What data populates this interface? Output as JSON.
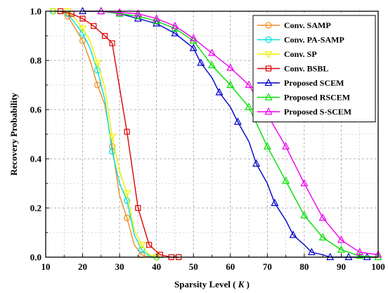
{
  "chart_data": {
    "type": "line",
    "title": "",
    "xlabel": "Sparsity Level",
    "xlabel_symbol": "K",
    "ylabel": "Recovery Probability",
    "xlim": [
      10,
      100
    ],
    "ylim": [
      0,
      1
    ],
    "xticks": [
      10,
      20,
      30,
      40,
      50,
      60,
      70,
      80,
      90,
      100
    ],
    "yticks": [
      0.0,
      0.2,
      0.4,
      0.6,
      0.8,
      1.0
    ],
    "ytick_labels": [
      "0.0",
      "0.2",
      "0.4",
      "0.6",
      "0.8",
      "1.0"
    ],
    "grid": true,
    "legend_position": "top-right",
    "series": [
      {
        "name": "Conv. SAMP",
        "color": "#f08c1e",
        "marker": "circle",
        "x": [
          12,
          14,
          16,
          18,
          20,
          22,
          24,
          26,
          28,
          30,
          32,
          34,
          36,
          38,
          40,
          42
        ],
        "y": [
          1.0,
          1.0,
          0.98,
          0.93,
          0.88,
          0.8,
          0.7,
          0.62,
          0.45,
          0.25,
          0.16,
          0.05,
          0.01,
          0.0,
          0.0,
          0.0
        ],
        "marker_every": 2
      },
      {
        "name": "Conv. PA-SAMP",
        "color": "#00e0e0",
        "marker": "circle",
        "x": [
          12,
          14,
          16,
          18,
          20,
          22,
          24,
          26,
          28,
          30,
          32,
          34,
          36,
          38,
          40,
          42
        ],
        "y": [
          1.0,
          1.0,
          0.99,
          0.95,
          0.91,
          0.85,
          0.76,
          0.64,
          0.43,
          0.3,
          0.23,
          0.09,
          0.03,
          0.005,
          0.0,
          0.0
        ],
        "marker_every": 2
      },
      {
        "name": "Conv. SP",
        "color": "#f0f000",
        "marker": "triangle-down",
        "x": [
          12,
          14,
          16,
          18,
          20,
          22,
          24,
          26,
          28,
          30,
          32,
          34,
          36,
          38,
          40,
          42
        ],
        "y": [
          1.0,
          1.0,
          1.0,
          0.97,
          0.93,
          0.88,
          0.79,
          0.69,
          0.49,
          0.35,
          0.26,
          0.11,
          0.05,
          0.01,
          0.0,
          0.0
        ],
        "marker_every": 2
      },
      {
        "name": "Conv. BSBL",
        "color": "#e00000",
        "marker": "square",
        "x": [
          14,
          17,
          20,
          23,
          26,
          28,
          32,
          35,
          38,
          41,
          44,
          46
        ],
        "y": [
          1.0,
          0.99,
          0.97,
          0.94,
          0.9,
          0.87,
          0.51,
          0.2,
          0.05,
          0.01,
          0.0,
          0.0
        ],
        "marker_every": 1
      },
      {
        "name": "Proposed SCEM",
        "color": "#0000cc",
        "marker": "triangle-up",
        "x": [
          20,
          25,
          30,
          35,
          40,
          45,
          50,
          52,
          55,
          57,
          60,
          62,
          65,
          67,
          70,
          72,
          75,
          77,
          80,
          82,
          85,
          87,
          90,
          95,
          100
        ],
        "y": [
          1.0,
          1.0,
          0.99,
          0.97,
          0.95,
          0.91,
          0.85,
          0.79,
          0.73,
          0.67,
          0.61,
          0.55,
          0.47,
          0.38,
          0.3,
          0.22,
          0.15,
          0.09,
          0.05,
          0.02,
          0.01,
          0.0,
          0.0,
          0.0,
          0.0
        ],
        "markers_x": [
          20,
          25,
          30,
          35,
          40,
          45,
          50,
          52,
          57,
          62,
          67,
          72,
          77,
          82,
          87,
          92,
          97
        ]
      },
      {
        "name": "Proposed RSCEM",
        "color": "#00e000",
        "marker": "triangle-up",
        "x": [
          25,
          30,
          35,
          40,
          45,
          50,
          55,
          60,
          65,
          70,
          75,
          80,
          85,
          90,
          95,
          100
        ],
        "y": [
          1.0,
          0.99,
          0.98,
          0.96,
          0.93,
          0.88,
          0.78,
          0.7,
          0.61,
          0.45,
          0.31,
          0.17,
          0.08,
          0.03,
          0.005,
          0.0
        ],
        "markers_x": [
          25,
          30,
          35,
          40,
          45,
          50,
          55,
          60,
          65,
          70,
          75,
          80,
          85,
          90,
          95,
          100
        ]
      },
      {
        "name": "Proposed S-SCEM",
        "color": "#f000f0",
        "marker": "triangle-up",
        "x": [
          25,
          30,
          35,
          40,
          45,
          50,
          55,
          60,
          65,
          70,
          75,
          80,
          85,
          90,
          95,
          100
        ],
        "y": [
          1.0,
          0.995,
          0.99,
          0.97,
          0.94,
          0.89,
          0.83,
          0.77,
          0.7,
          0.58,
          0.45,
          0.3,
          0.16,
          0.07,
          0.02,
          0.01
        ],
        "markers_x": [
          25,
          30,
          35,
          40,
          45,
          50,
          55,
          60,
          65,
          70,
          75,
          80,
          85,
          90,
          95,
          100
        ]
      }
    ]
  }
}
